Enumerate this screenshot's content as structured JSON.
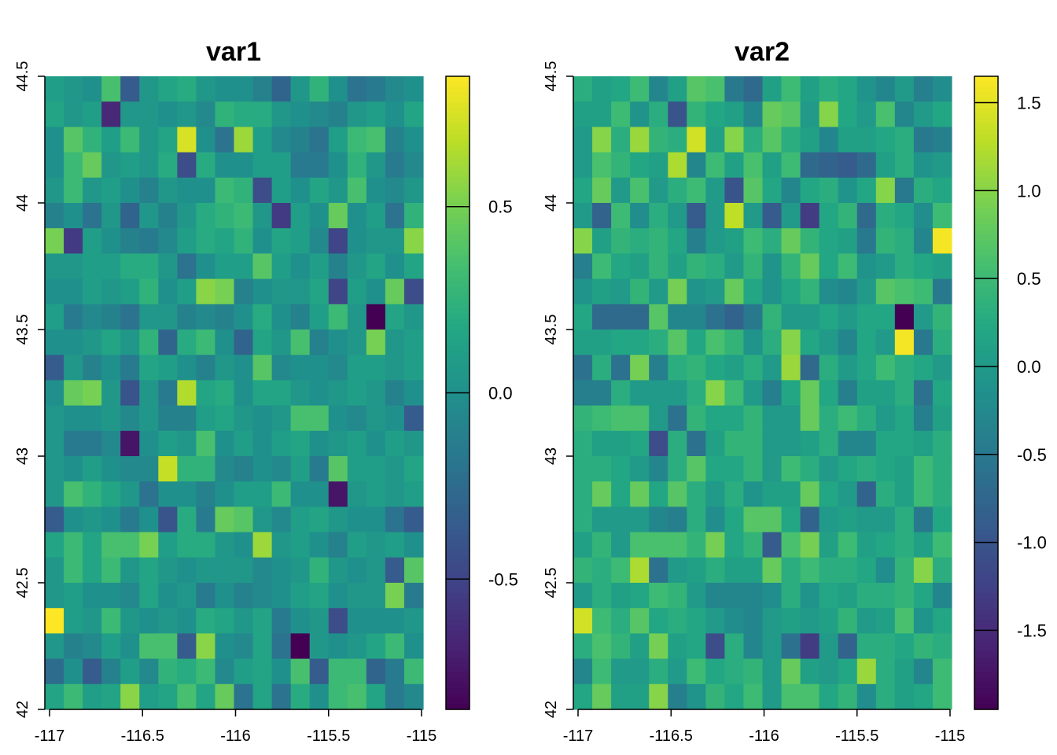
{
  "chart_data": [
    {
      "type": "heatmap",
      "title": "var1",
      "xlabel": "",
      "ylabel": "",
      "xlim": [
        -117,
        -115
      ],
      "ylim": [
        42,
        44.5
      ],
      "xticks": [
        "-117",
        "-116.5",
        "-116",
        "-115.5",
        "-115"
      ],
      "yticks": [
        "42",
        "42.5",
        "43",
        "43.5",
        "44",
        "44.5"
      ],
      "ncols": 20,
      "nrows": 25,
      "colorscale": "viridis",
      "colorbar": {
        "min": -0.85,
        "max": 0.85,
        "ticks": [
          "0.5",
          "0.0",
          "-0.5"
        ]
      },
      "grid_values": [
        [
          0.1,
          0.05,
          0.0,
          0.35,
          -0.35,
          0.05,
          0.15,
          0.2,
          0.05,
          0.0,
          0.0,
          -0.1,
          -0.3,
          0.05,
          0.25,
          0.0,
          -0.2,
          -0.15,
          -0.05,
          0.0
        ],
        [
          0.15,
          0.05,
          0.1,
          -0.65,
          0.05,
          0.05,
          0.0,
          0.05,
          -0.05,
          0.25,
          0.2,
          0.2,
          0.05,
          0.0,
          -0.05,
          -0.1,
          0.05,
          0.1,
          0.0,
          0.15
        ],
        [
          0.0,
          0.4,
          0.25,
          0.1,
          0.3,
          0.05,
          0.15,
          0.75,
          0.0,
          -0.2,
          0.6,
          0.1,
          -0.05,
          -0.1,
          -0.2,
          0.1,
          0.3,
          0.35,
          -0.1,
          0.0
        ],
        [
          0.0,
          0.3,
          0.45,
          0.05,
          0.1,
          0.05,
          0.2,
          -0.45,
          0.2,
          0.0,
          0.0,
          0.1,
          0.1,
          -0.15,
          -0.15,
          0.0,
          0.25,
          0.05,
          -0.15,
          -0.05
        ],
        [
          0.05,
          0.3,
          0.05,
          0.1,
          0.0,
          -0.1,
          0.05,
          0.0,
          0.0,
          0.3,
          0.25,
          -0.45,
          0.1,
          0.0,
          0.15,
          0.05,
          0.35,
          0.0,
          -0.05,
          0.05
        ],
        [
          -0.1,
          0.0,
          -0.2,
          0.05,
          -0.3,
          0.05,
          -0.1,
          0.05,
          0.2,
          0.25,
          0.3,
          0.05,
          -0.55,
          0.1,
          0.0,
          0.45,
          0.0,
          0.1,
          -0.2,
          0.25
        ],
        [
          0.5,
          -0.55,
          0.1,
          0.0,
          -0.1,
          -0.15,
          -0.05,
          0.1,
          0.2,
          0.15,
          0.25,
          0.0,
          0.15,
          0.1,
          -0.05,
          -0.5,
          0.0,
          0.05,
          0.05,
          0.55
        ],
        [
          0.05,
          0.05,
          0.1,
          0.1,
          0.2,
          0.2,
          0.05,
          -0.2,
          0.0,
          0.1,
          0.1,
          0.4,
          0.1,
          0.0,
          0.1,
          -0.1,
          0.05,
          0.15,
          0.0,
          0.15
        ],
        [
          0.0,
          0.0,
          0.1,
          0.05,
          0.1,
          0.25,
          0.0,
          0.1,
          0.55,
          0.5,
          -0.1,
          0.0,
          0.05,
          0.05,
          0.15,
          -0.5,
          0.1,
          0.0,
          0.45,
          -0.45
        ],
        [
          0.1,
          -0.15,
          -0.05,
          -0.1,
          -0.2,
          0.05,
          0.05,
          -0.1,
          -0.05,
          -0.1,
          0.0,
          0.2,
          0.0,
          -0.1,
          0.1,
          0.3,
          0.05,
          -0.9,
          0.15,
          0.05
        ],
        [
          0.0,
          0.0,
          0.05,
          0.15,
          0.05,
          0.25,
          -0.3,
          0.2,
          0.3,
          0.0,
          -0.3,
          0.15,
          0.05,
          0.35,
          -0.1,
          0.0,
          0.05,
          0.5,
          0.05,
          0.1
        ],
        [
          -0.35,
          0.05,
          -0.1,
          0.0,
          -0.15,
          0.15,
          0.1,
          0.0,
          -0.1,
          0.05,
          0.0,
          0.4,
          -0.05,
          0.0,
          0.0,
          -0.05,
          0.1,
          0.1,
          0.05,
          0.1
        ],
        [
          0.0,
          0.45,
          0.5,
          0.05,
          -0.4,
          0.05,
          -0.15,
          0.65,
          0.15,
          0.2,
          0.0,
          0.15,
          0.15,
          0.05,
          0.0,
          0.05,
          0.1,
          0.05,
          -0.1,
          0.0
        ],
        [
          0.05,
          0.0,
          0.0,
          0.05,
          -0.05,
          0.05,
          -0.1,
          -0.1,
          0.1,
          0.15,
          0.05,
          0.0,
          0.05,
          0.35,
          0.35,
          0.0,
          -0.05,
          0.05,
          0.0,
          -0.35
        ],
        [
          0.05,
          -0.15,
          -0.15,
          -0.05,
          -0.75,
          0.0,
          0.1,
          0.05,
          0.35,
          0.0,
          0.1,
          0.0,
          0.1,
          0.15,
          0.0,
          0.05,
          0.1,
          0.0,
          0.1,
          0.05
        ],
        [
          0.05,
          0.0,
          0.1,
          0.0,
          -0.05,
          -0.05,
          0.7,
          0.25,
          0.25,
          -0.05,
          -0.1,
          0.0,
          -0.05,
          0.1,
          -0.15,
          0.4,
          0.1,
          0.1,
          0.05,
          0.15
        ],
        [
          0.05,
          0.35,
          0.25,
          0.15,
          0.05,
          -0.2,
          0.0,
          0.0,
          -0.1,
          0.0,
          0.1,
          0.1,
          0.3,
          0.0,
          0.0,
          -0.75,
          0.05,
          0.1,
          0.05,
          0.1
        ],
        [
          -0.35,
          0.0,
          0.05,
          0.0,
          -0.15,
          0.0,
          -0.4,
          0.2,
          -0.15,
          0.45,
          0.4,
          0.05,
          -0.05,
          0.1,
          0.15,
          0.05,
          0.0,
          0.0,
          -0.2,
          -0.35
        ],
        [
          0.15,
          0.3,
          0.15,
          0.35,
          0.35,
          0.5,
          0.1,
          0.2,
          0.2,
          0.05,
          0.0,
          0.6,
          0.05,
          0.1,
          0.0,
          -0.1,
          0.1,
          0.05,
          0.1,
          0.0
        ],
        [
          0.05,
          0.3,
          0.15,
          0.3,
          0.05,
          0.15,
          0.05,
          0.0,
          0.05,
          0.05,
          0.05,
          -0.05,
          0.0,
          0.05,
          0.25,
          0.05,
          0.0,
          0.05,
          -0.35,
          0.4
        ],
        [
          0.05,
          0.1,
          0.0,
          0.0,
          -0.05,
          0.15,
          0.0,
          0.05,
          -0.15,
          0.0,
          -0.1,
          -0.05,
          0.0,
          0.1,
          0.15,
          0.0,
          0.05,
          0.05,
          0.5,
          -0.15
        ],
        [
          0.85,
          0.1,
          0.05,
          0.3,
          0.05,
          0.0,
          0.05,
          0.0,
          0.2,
          0.15,
          0.05,
          0.15,
          -0.15,
          0.0,
          0.05,
          -0.45,
          0.0,
          0.0,
          0.0,
          0.05
        ],
        [
          0.05,
          -0.1,
          -0.05,
          0.1,
          0.0,
          0.35,
          0.35,
          -0.35,
          0.55,
          0.0,
          -0.05,
          0.15,
          -0.2,
          -0.85,
          0.05,
          0.0,
          0.05,
          0.15,
          0.3,
          0.0
        ],
        [
          -0.25,
          0.0,
          -0.35,
          -0.1,
          0.1,
          -0.05,
          0.25,
          0.2,
          0.3,
          -0.05,
          0.1,
          0.15,
          0.0,
          0.35,
          -0.35,
          0.3,
          0.3,
          -0.3,
          -0.15,
          0.3
        ],
        [
          0.15,
          0.3,
          0.1,
          0.15,
          0.55,
          0.1,
          0.15,
          0.35,
          0.15,
          0.45,
          -0.2,
          0.15,
          -0.2,
          0.2,
          0.0,
          0.3,
          0.35,
          0.15,
          -0.15,
          -0.05
        ]
      ]
    },
    {
      "type": "heatmap",
      "title": "var2",
      "xlabel": "",
      "ylabel": "",
      "xlim": [
        -117,
        -115
      ],
      "ylim": [
        42,
        44.5
      ],
      "xticks": [
        "-117",
        "-116.5",
        "-116",
        "-115.5",
        "-115"
      ],
      "yticks": [
        "42",
        "42.5",
        "43",
        "43.5",
        "44",
        "44.5"
      ],
      "ncols": 20,
      "nrows": 25,
      "colorscale": "viridis",
      "colorbar": {
        "min": -1.95,
        "max": 1.65,
        "ticks": [
          "1.5",
          "1.0",
          "0.5",
          "0.0",
          "-0.5",
          "-1.0",
          "-1.5"
        ]
      },
      "grid_values": [
        [
          0.3,
          0.1,
          0.2,
          0.5,
          -0.3,
          0.1,
          0.7,
          0.6,
          -0.5,
          -0.7,
          0.1,
          0.5,
          0.1,
          0.3,
          0.2,
          -0.1,
          -0.3,
          0.0,
          -0.4,
          -0.2
        ],
        [
          0.1,
          0.1,
          0.5,
          -0.1,
          0.3,
          -1.0,
          0.4,
          0.2,
          0.1,
          -0.3,
          0.8,
          0.7,
          0.0,
          1.0,
          0.2,
          0.0,
          0.6,
          -0.3,
          0.0,
          0.2
        ],
        [
          0.0,
          1.0,
          0.3,
          1.1,
          0.4,
          0.3,
          1.4,
          0.1,
          1.0,
          0.3,
          0.7,
          0.3,
          0.1,
          -0.3,
          0.1,
          0.1,
          0.2,
          0.3,
          -0.5,
          -0.4
        ],
        [
          0.0,
          0.6,
          0.4,
          0.2,
          0.1,
          1.2,
          -0.3,
          0.5,
          0.1,
          0.6,
          0.1,
          0.5,
          -0.7,
          -0.8,
          -0.9,
          -0.7,
          0.1,
          0.3,
          -0.1,
          0.0
        ],
        [
          0.2,
          0.8,
          0.0,
          0.6,
          0.0,
          0.3,
          0.5,
          0.0,
          -1.0,
          0.7,
          0.2,
          -0.3,
          0.2,
          0.3,
          -0.1,
          0.2,
          1.0,
          -0.5,
          0.3,
          0.2
        ],
        [
          0.0,
          -0.8,
          0.5,
          -0.2,
          0.3,
          0.0,
          -0.9,
          0.0,
          1.3,
          0.0,
          -0.9,
          0.0,
          -1.3,
          0.2,
          0.4,
          -0.7,
          0.3,
          0.2,
          -0.2,
          0.5
        ],
        [
          1.0,
          0.1,
          0.4,
          0.3,
          0.4,
          0.2,
          -0.4,
          0.0,
          0.1,
          0.5,
          0.3,
          0.8,
          0.4,
          0.2,
          0.1,
          -0.5,
          0.4,
          0.3,
          -0.3,
          1.6
        ],
        [
          -0.4,
          0.5,
          0.2,
          0.1,
          0.4,
          0.1,
          0.4,
          0.3,
          0.0,
          0.4,
          -0.1,
          0.4,
          0.8,
          0.2,
          0.5,
          -0.1,
          0.0,
          0.3,
          0.2,
          0.1
        ],
        [
          -0.1,
          0.1,
          0.0,
          0.4,
          0.0,
          0.9,
          -0.1,
          0.0,
          0.8,
          0.2,
          -0.1,
          0.2,
          0.4,
          -0.2,
          -0.3,
          0.0,
          0.7,
          0.6,
          0.5,
          -0.5
        ],
        [
          0.2,
          -0.7,
          -0.7,
          -0.7,
          0.7,
          -0.3,
          -0.3,
          -0.6,
          -0.8,
          -0.5,
          0.4,
          0.0,
          0.0,
          0.2,
          0.0,
          0.2,
          0.2,
          -1.95,
          0.0,
          0.4
        ],
        [
          0.1,
          0.1,
          0.2,
          0.2,
          0.3,
          0.7,
          0.2,
          0.6,
          0.4,
          -0.1,
          0.3,
          1.0,
          0.2,
          0.0,
          -0.3,
          0.2,
          0.0,
          1.6,
          -0.5,
          0.3
        ],
        [
          -0.6,
          0.3,
          -0.6,
          0.9,
          -0.4,
          0.3,
          0.4,
          0.2,
          0.1,
          0.3,
          0.0,
          1.1,
          -0.7,
          0.3,
          0.0,
          0.2,
          0.5,
          0.3,
          0.2,
          0.0
        ],
        [
          -0.4,
          -0.4,
          0.3,
          0.0,
          0.0,
          0.0,
          0.3,
          1.0,
          0.5,
          0.0,
          -0.4,
          0.2,
          0.8,
          0.2,
          -0.4,
          0.1,
          0.1,
          0.3,
          -0.6,
          0.2
        ],
        [
          0.4,
          0.5,
          0.6,
          0.6,
          0.0,
          -0.6,
          0.4,
          0.2,
          0.2,
          0.4,
          0.0,
          0.0,
          0.8,
          0.3,
          0.5,
          0.3,
          0.0,
          0.2,
          -0.4,
          0.1
        ],
        [
          0.3,
          0.1,
          0.1,
          0.2,
          -1.1,
          0.3,
          -0.6,
          0.1,
          0.4,
          0.4,
          0.0,
          0.0,
          0.1,
          0.3,
          -0.3,
          -0.3,
          0.2,
          0.2,
          0.1,
          0.3
        ],
        [
          0.3,
          0.3,
          0.2,
          0.0,
          -0.3,
          0.3,
          0.7,
          0.2,
          0.2,
          0.4,
          0.0,
          0.5,
          0.3,
          0.0,
          0.2,
          0.3,
          0.2,
          0.1,
          0.5,
          0.3
        ],
        [
          0.3,
          0.8,
          0.2,
          0.8,
          0.2,
          0.7,
          0.3,
          0.0,
          0.3,
          -0.1,
          0.1,
          0.1,
          0.8,
          0.2,
          0.0,
          -0.8,
          0.3,
          0.1,
          0.5,
          0.3
        ],
        [
          0.3,
          0.0,
          0.0,
          0.0,
          -0.3,
          -0.4,
          0.3,
          -0.2,
          0.2,
          0.7,
          0.7,
          0.2,
          -0.8,
          0.0,
          0.1,
          0.0,
          0.0,
          0.3,
          -0.5,
          0.2
        ],
        [
          0.1,
          0.4,
          0.0,
          0.6,
          0.6,
          0.6,
          0.4,
          0.9,
          0.2,
          0.4,
          -0.9,
          0.6,
          0.9,
          0.1,
          0.5,
          0.1,
          0.2,
          0.3,
          0.1,
          0.5
        ],
        [
          0.4,
          0.3,
          0.5,
          1.2,
          -0.6,
          0.0,
          0.1,
          0.3,
          0.1,
          0.1,
          0.8,
          0.3,
          0.5,
          0.3,
          0.3,
          0.2,
          -0.2,
          0.4,
          1.0,
          0.3
        ],
        [
          0.0,
          0.3,
          0.1,
          0.2,
          0.5,
          0.4,
          0.0,
          -0.3,
          -0.3,
          -0.3,
          -0.2,
          0.3,
          -0.1,
          0.2,
          0.1,
          0.3,
          0.3,
          0.4,
          0.2,
          -0.3
        ],
        [
          1.4,
          0.5,
          0.3,
          0.7,
          0.2,
          0.3,
          0.2,
          0.0,
          -0.2,
          -0.3,
          0.0,
          0.1,
          0.0,
          0.1,
          0.4,
          0.0,
          0.1,
          0.6,
          -0.1,
          0.2
        ],
        [
          0.3,
          0.6,
          0.4,
          0.1,
          0.9,
          0.1,
          0.2,
          -1.1,
          0.3,
          -0.3,
          0.0,
          -0.6,
          -1.3,
          0.0,
          -0.8,
          0.3,
          0.3,
          0.2,
          0.4,
          0.3
        ],
        [
          -0.3,
          0.5,
          0.0,
          0.0,
          0.3,
          0.0,
          0.5,
          0.2,
          0.3,
          0.4,
          0.0,
          0.8,
          0.1,
          0.0,
          0.2,
          1.1,
          0.3,
          0.1,
          -0.3,
          0.5
        ],
        [
          0.2,
          0.8,
          0.1,
          0.1,
          1.0,
          -0.4,
          -0.1,
          0.4,
          0.2,
          0.5,
          0.0,
          0.6,
          0.6,
          0.2,
          0.4,
          -0.2,
          0.3,
          0.1,
          0.2,
          0.5
        ]
      ]
    }
  ]
}
